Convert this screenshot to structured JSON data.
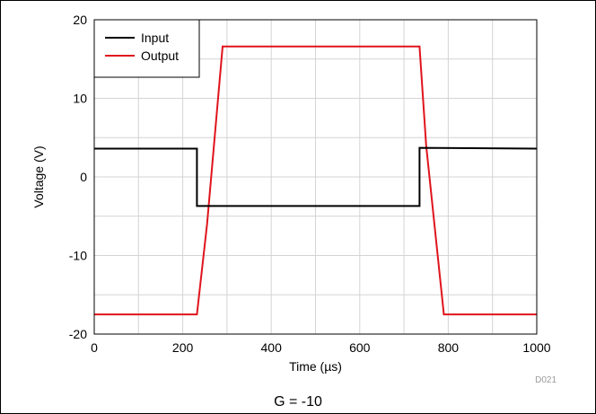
{
  "chart_data": {
    "type": "line",
    "xlabel": "Time (µs)",
    "ylabel": "Voltage (V)",
    "xlim": [
      0,
      1000
    ],
    "ylim": [
      -20,
      20
    ],
    "xticks": [
      0,
      200,
      400,
      600,
      800,
      1000
    ],
    "yticks": [
      -20,
      -10,
      0,
      10,
      20
    ],
    "xtick_labels": [
      "0",
      "200",
      "400",
      "600",
      "800",
      "1000"
    ],
    "ytick_labels": [
      "-20",
      "-10",
      "0",
      "10",
      "20"
    ],
    "grid": true,
    "legend_position": "top-left",
    "series": [
      {
        "name": "Input",
        "color": "#000000",
        "x": [
          0,
          232,
          232,
          735,
          735,
          1000
        ],
        "y": [
          3.6,
          3.6,
          -3.7,
          -3.7,
          3.7,
          3.6
        ]
      },
      {
        "name": "Output",
        "color": "#e0141c",
        "x": [
          0,
          232,
          255,
          290,
          735,
          750,
          790,
          1000
        ],
        "y": [
          -17.5,
          -17.5,
          -6,
          16.6,
          16.6,
          4,
          -17.5,
          -17.5
        ]
      }
    ]
  },
  "figure_id": "D021",
  "caption": "G = -10"
}
